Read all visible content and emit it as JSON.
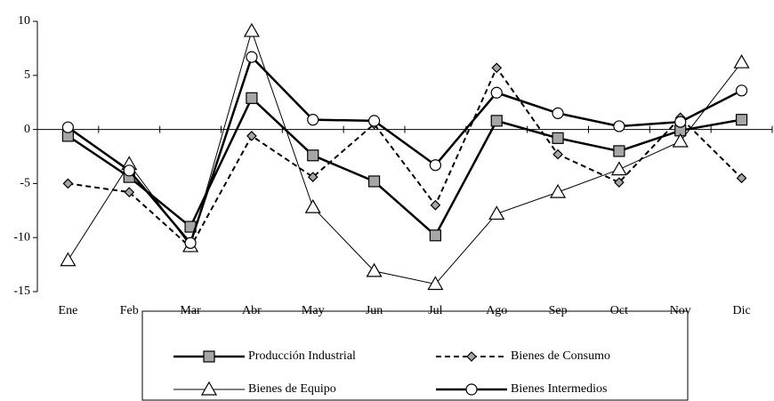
{
  "chart_data": {
    "type": "line",
    "categories": [
      "Ene",
      "Feb",
      "Mar",
      "Abr",
      "May",
      "Jun",
      "Jul",
      "Ago",
      "Sep",
      "Oct",
      "Nov",
      "Dic"
    ],
    "series": [
      {
        "name": "Producción Industrial",
        "color": "#000000",
        "marker": "square",
        "dash": "solid",
        "width": 2.5,
        "values": [
          -0.6,
          -4.4,
          -9,
          2.9,
          -2.4,
          -4.8,
          -9.8,
          0.8,
          -0.8,
          -2.0,
          -0.1,
          0.9
        ]
      },
      {
        "name": "Bienes de Consumo",
        "color": "#000000",
        "marker": "diamond",
        "dash": "dashed",
        "width": 2,
        "values": [
          -5,
          -5.8,
          -10.9,
          -0.6,
          -4.4,
          0.5,
          -7,
          5.7,
          -2.3,
          -4.9,
          1.1,
          -4.5
        ]
      },
      {
        "name": "Bienes de Equipo",
        "color": "#000000",
        "marker": "triangle",
        "dash": "solid",
        "width": 1,
        "values": [
          -12.1,
          -3.2,
          -10.8,
          9.1,
          -7.2,
          -13.1,
          -14.3,
          -7.8,
          -5.8,
          -3.7,
          -1.1,
          6.2
        ]
      },
      {
        "name": "Bienes Intermedios",
        "color": "#000000",
        "marker": "circle",
        "dash": "solid",
        "width": 2.5,
        "values": [
          0.2,
          -3.8,
          -10.5,
          6.7,
          0.9,
          0.8,
          -3.3,
          3.4,
          1.5,
          0.3,
          0.7,
          3.6
        ]
      }
    ],
    "ylim": [
      -15,
      10
    ],
    "yticks": [
      -15,
      -10,
      -5,
      0,
      5,
      10
    ],
    "grid": false,
    "legend": "bottom"
  }
}
